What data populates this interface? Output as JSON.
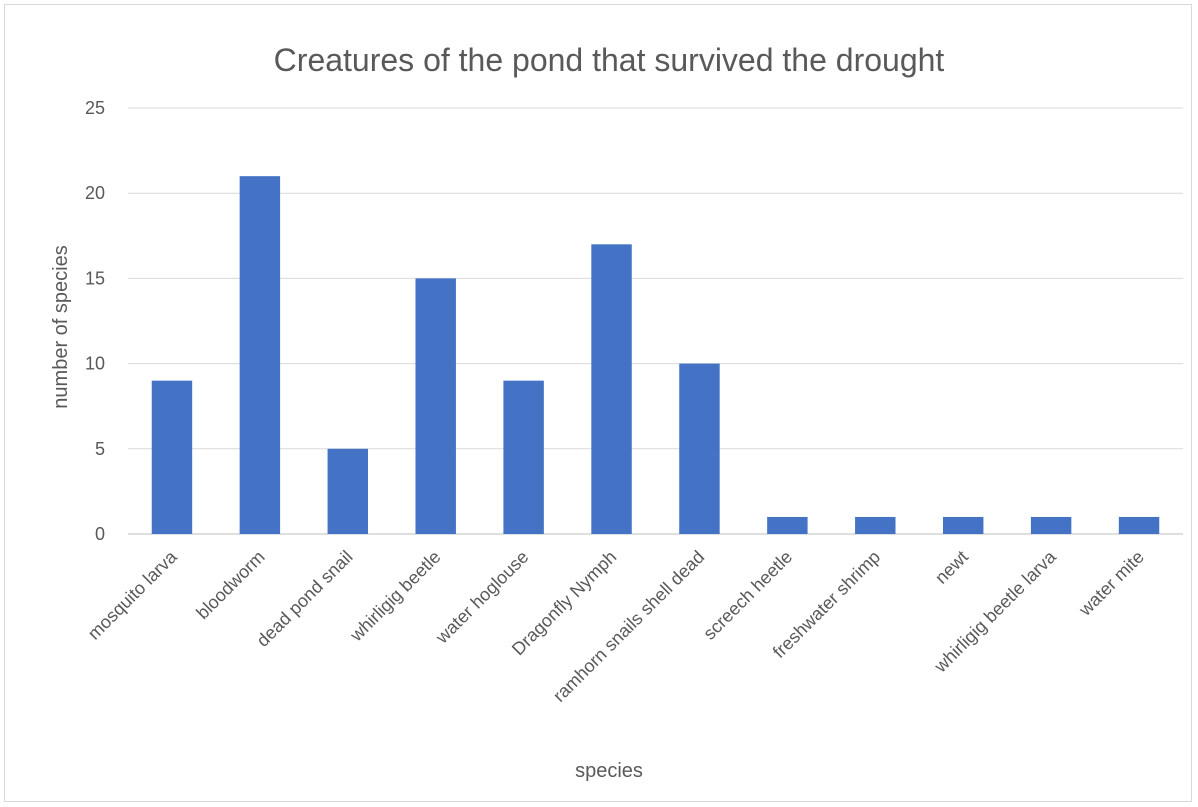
{
  "chart_data": {
    "type": "bar",
    "title": "Creatures of the pond that survived the drought",
    "xlabel": "species",
    "ylabel": "number of species",
    "categories": [
      "mosquito larva",
      "bloodworm",
      "dead pond snail",
      "whirligig beetle",
      "water hoglouse",
      "Dragonfly Nymph",
      "ramhorn snails shell dead",
      "screech heetle",
      "freshwater shrimp",
      "newt",
      "whirligig beetle larva",
      "water mite"
    ],
    "values": [
      9,
      21,
      5,
      15,
      9,
      17,
      10,
      1,
      1,
      1,
      1,
      1
    ],
    "ylim": [
      0,
      25
    ],
    "yticks": [
      "0",
      "5",
      "10",
      "15",
      "20",
      "25"
    ],
    "grid": true,
    "legend": "none",
    "bar_color": "#4472c4"
  }
}
